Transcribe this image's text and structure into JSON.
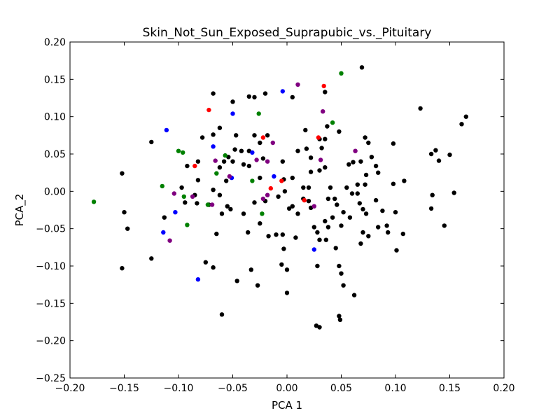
{
  "chart_data": {
    "type": "scatter",
    "title": "Skin_Not_Sun_Exposed_Suprapubic_vs._Pituitary",
    "xlabel": "PCA 1",
    "ylabel": "PCA_2",
    "xlim": [
      -0.2,
      0.2
    ],
    "ylim": [
      -0.25,
      0.2
    ],
    "x_ticks": [
      -0.2,
      -0.15,
      -0.1,
      -0.05,
      0.0,
      0.05,
      0.1,
      0.15,
      0.2
    ],
    "y_ticks": [
      -0.25,
      -0.2,
      -0.15,
      -0.1,
      -0.05,
      0.0,
      0.05,
      0.1,
      0.15,
      0.2
    ],
    "x_tick_labels": [
      "−0.20",
      "−0.15",
      "−0.10",
      "−0.05",
      "0.00",
      "0.05",
      "0.10",
      "0.15",
      "0.20"
    ],
    "y_tick_labels": [
      "−0.25",
      "−0.20",
      "−0.15",
      "−0.10",
      "−0.05",
      "0.00",
      "0.05",
      "0.10",
      "0.15",
      "0.20"
    ],
    "grid": false,
    "series": [
      {
        "color": "#000000",
        "points": [
          [
            0.069,
            0.166
          ],
          [
            -0.068,
            0.131
          ],
          [
            -0.05,
            0.12
          ],
          [
            -0.035,
            0.127
          ],
          [
            -0.03,
            0.126
          ],
          [
            -0.02,
            0.131
          ],
          [
            0.005,
            0.126
          ],
          [
            0.035,
            0.133
          ],
          [
            0.123,
            0.111
          ],
          [
            0.165,
            0.1
          ],
          [
            0.161,
            0.09
          ],
          [
            -0.062,
            0.085
          ],
          [
            0.037,
            0.087
          ],
          [
            0.017,
            0.082
          ],
          [
            -0.125,
            0.066
          ],
          [
            -0.078,
            0.072
          ],
          [
            -0.068,
            0.076
          ],
          [
            -0.047,
            0.075
          ],
          [
            -0.03,
            0.075
          ],
          [
            -0.025,
            0.065
          ],
          [
            -0.018,
            0.075
          ],
          [
            0.03,
            0.07
          ],
          [
            0.035,
            0.07
          ],
          [
            0.048,
            0.08
          ],
          [
            0.072,
            0.072
          ],
          [
            0.075,
            0.065
          ],
          [
            0.098,
            0.064
          ],
          [
            0.018,
            0.057
          ],
          [
            0.01,
            0.054
          ],
          [
            -0.048,
            0.056
          ],
          [
            -0.042,
            0.054
          ],
          [
            -0.035,
            0.054
          ],
          [
            -0.054,
            0.046
          ],
          [
            -0.058,
            0.04
          ],
          [
            -0.05,
            0.04
          ],
          [
            -0.062,
            0.032
          ],
          [
            -0.082,
            0.04
          ],
          [
            -0.092,
            0.034
          ],
          [
            -0.04,
            0.036
          ],
          [
            -0.035,
            0.034
          ],
          [
            -0.022,
            0.044
          ],
          [
            -0.004,
            0.04
          ],
          [
            0.022,
            0.045
          ],
          [
            0.032,
            0.058
          ],
          [
            0.022,
            0.026
          ],
          [
            0.03,
            0.028
          ],
          [
            0.035,
            0.032
          ],
          [
            0.057,
            0.036
          ],
          [
            0.061,
            0.039
          ],
          [
            0.068,
            0.04
          ],
          [
            0.078,
            0.046
          ],
          [
            0.082,
            0.034
          ],
          [
            0.073,
            0.022
          ],
          [
            0.084,
            0.025
          ],
          [
            0.133,
            0.05
          ],
          [
            0.137,
            0.055
          ],
          [
            0.14,
            0.041
          ],
          [
            0.15,
            0.049
          ],
          [
            -0.152,
            0.024
          ],
          [
            -0.097,
            0.005
          ],
          [
            -0.082,
            0.015
          ],
          [
            -0.085,
            -0.005
          ],
          [
            -0.094,
            -0.015
          ],
          [
            -0.056,
            0.014
          ],
          [
            -0.068,
            0.002
          ],
          [
            -0.062,
            -0.005
          ],
          [
            -0.025,
            0.018
          ],
          [
            -0.003,
            0.016
          ],
          [
            0.005,
            0.018
          ],
          [
            0.015,
            0.005
          ],
          [
            0.02,
            0.005
          ],
          [
            0.04,
            0.005
          ],
          [
            0.055,
            0.005
          ],
          [
            0.065,
            0.009
          ],
          [
            0.072,
            0.009
          ],
          [
            0.098,
            0.01
          ],
          [
            0.108,
            0.014
          ],
          [
            -0.15,
            -0.028
          ],
          [
            -0.147,
            -0.05
          ],
          [
            -0.113,
            -0.035
          ],
          [
            -0.083,
            -0.016
          ],
          [
            -0.072,
            -0.018
          ],
          [
            -0.055,
            -0.02
          ],
          [
            -0.052,
            -0.024
          ],
          [
            -0.06,
            -0.03
          ],
          [
            -0.04,
            -0.03
          ],
          [
            -0.03,
            -0.015
          ],
          [
            -0.02,
            -0.013
          ],
          [
            -0.008,
            -0.007
          ],
          [
            -0.002,
            0.0
          ],
          [
            0.002,
            -0.023
          ],
          [
            0.005,
            -0.02
          ],
          [
            0.015,
            -0.01
          ],
          [
            0.02,
            -0.013
          ],
          [
            0.022,
            -0.022
          ],
          [
            0.038,
            -0.01
          ],
          [
            0.044,
            -0.01
          ],
          [
            0.046,
            -0.018
          ],
          [
            0.052,
            -0.028
          ],
          [
            0.06,
            -0.003
          ],
          [
            0.065,
            -0.003
          ],
          [
            0.067,
            -0.016
          ],
          [
            0.07,
            -0.024
          ],
          [
            0.073,
            -0.03
          ],
          [
            0.082,
            -0.012
          ],
          [
            0.088,
            -0.026
          ],
          [
            0.1,
            -0.028
          ],
          [
            0.092,
            -0.046
          ],
          [
            0.084,
            -0.048
          ],
          [
            0.134,
            -0.005
          ],
          [
            0.154,
            -0.002
          ],
          [
            0.133,
            -0.023
          ],
          [
            -0.065,
            -0.057
          ],
          [
            -0.036,
            -0.055
          ],
          [
            -0.025,
            -0.043
          ],
          [
            -0.017,
            -0.06
          ],
          [
            -0.01,
            -0.058
          ],
          [
            -0.004,
            -0.058
          ],
          [
            0.01,
            -0.03
          ],
          [
            0.008,
            -0.062
          ],
          [
            0.025,
            -0.048
          ],
          [
            0.028,
            -0.055
          ],
          [
            0.035,
            -0.04
          ],
          [
            0.038,
            -0.048
          ],
          [
            0.03,
            -0.065
          ],
          [
            0.036,
            -0.065
          ],
          [
            0.042,
            -0.035
          ],
          [
            0.05,
            -0.046
          ],
          [
            0.058,
            -0.035
          ],
          [
            0.07,
            -0.055
          ],
          [
            0.075,
            -0.06
          ],
          [
            0.068,
            -0.07
          ],
          [
            0.093,
            -0.055
          ],
          [
            0.107,
            -0.057
          ],
          [
            0.101,
            -0.079
          ],
          [
            0.145,
            -0.046
          ],
          [
            -0.152,
            -0.103
          ],
          [
            -0.125,
            -0.09
          ],
          [
            -0.075,
            -0.095
          ],
          [
            -0.068,
            -0.102
          ],
          [
            -0.033,
            -0.105
          ],
          [
            -0.005,
            -0.098
          ],
          [
            0.0,
            -0.105
          ],
          [
            -0.003,
            -0.077
          ],
          [
            0.028,
            -0.1
          ],
          [
            0.045,
            -0.076
          ],
          [
            0.048,
            -0.1
          ],
          [
            0.05,
            -0.11
          ],
          [
            0.052,
            -0.126
          ],
          [
            -0.046,
            -0.12
          ],
          [
            -0.027,
            -0.126
          ],
          [
            0.0,
            -0.136
          ],
          [
            0.062,
            -0.139
          ],
          [
            -0.06,
            -0.165
          ],
          [
            0.048,
            -0.167
          ],
          [
            0.049,
            -0.172
          ],
          [
            0.027,
            -0.18
          ],
          [
            0.03,
            -0.182
          ]
        ]
      },
      {
        "color": "#008000",
        "points": [
          [
            0.05,
            0.158
          ],
          [
            -0.026,
            0.104
          ],
          [
            0.042,
            0.092
          ],
          [
            -0.1,
            0.054
          ],
          [
            -0.096,
            0.052
          ],
          [
            -0.057,
            0.048
          ],
          [
            -0.065,
            0.024
          ],
          [
            -0.032,
            0.014
          ],
          [
            -0.115,
            0.007
          ],
          [
            -0.178,
            -0.014
          ],
          [
            -0.095,
            -0.007
          ],
          [
            -0.073,
            -0.018
          ],
          [
            -0.023,
            -0.03
          ],
          [
            -0.092,
            -0.045
          ]
        ]
      },
      {
        "color": "#0000ff",
        "points": [
          [
            -0.004,
            0.134
          ],
          [
            -0.05,
            0.104
          ],
          [
            -0.111,
            0.082
          ],
          [
            -0.068,
            0.06
          ],
          [
            -0.032,
            0.052
          ],
          [
            -0.012,
            0.02
          ],
          [
            -0.051,
            0.018
          ],
          [
            -0.103,
            -0.028
          ],
          [
            -0.114,
            -0.055
          ],
          [
            0.025,
            -0.078
          ],
          [
            -0.082,
            -0.118
          ]
        ]
      },
      {
        "color": "#800080",
        "points": [
          [
            0.01,
            0.143
          ],
          [
            0.033,
            0.107
          ],
          [
            -0.013,
            0.065
          ],
          [
            0.063,
            0.054
          ],
          [
            0.031,
            0.042
          ],
          [
            -0.028,
            0.042
          ],
          [
            -0.066,
            0.041
          ],
          [
            -0.018,
            0.04
          ],
          [
            -0.104,
            -0.003
          ],
          [
            -0.087,
            -0.007
          ],
          [
            -0.053,
            0.02
          ],
          [
            -0.018,
            -0.005
          ],
          [
            -0.022,
            -0.01
          ],
          [
            -0.069,
            -0.018
          ],
          [
            0.025,
            -0.02
          ],
          [
            -0.108,
            -0.066
          ]
        ]
      },
      {
        "color": "#ff0000",
        "points": [
          [
            0.034,
            0.141
          ],
          [
            -0.072,
            0.109
          ],
          [
            -0.022,
            0.072
          ],
          [
            0.029,
            0.072
          ],
          [
            -0.085,
            0.034
          ],
          [
            -0.005,
            0.014
          ],
          [
            -0.015,
            0.004
          ],
          [
            0.016,
            -0.012
          ]
        ]
      }
    ]
  }
}
